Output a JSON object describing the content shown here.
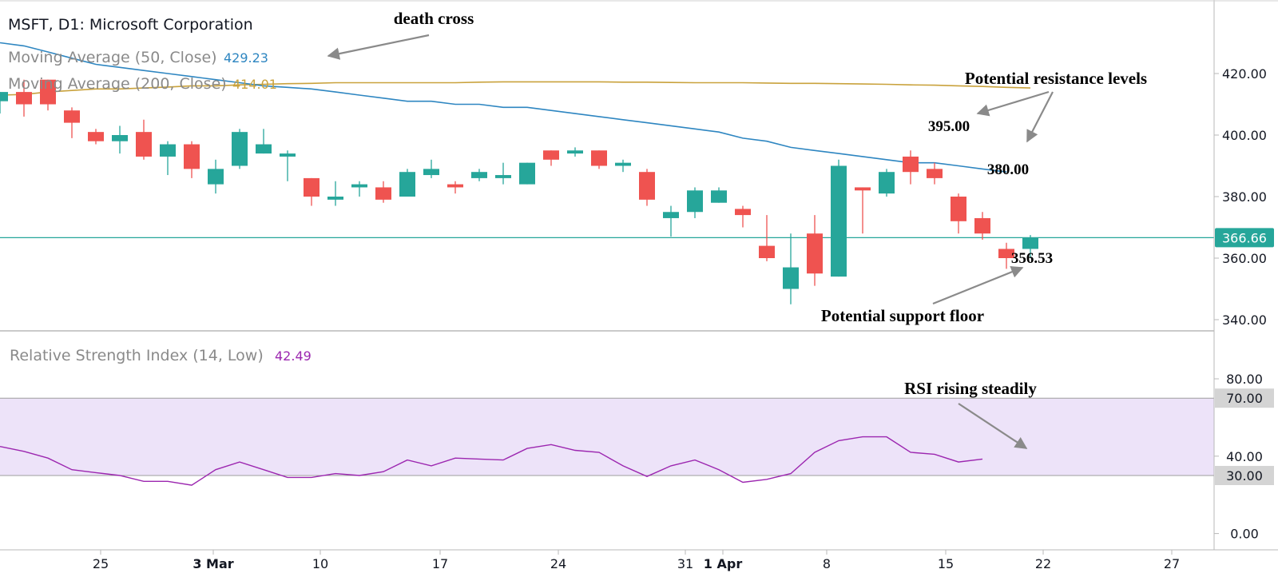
{
  "header": {
    "symbol_title": "MSFT, D1: Microsoft Corporation",
    "ma50_label": "Moving Average (50, Close)",
    "ma50_value": "429.23",
    "ma200_label": "Moving Average (200, Close)",
    "ma200_value": "414.01",
    "rsi_label": "Relative Strength Index (14, Low)",
    "rsi_value": "42.49"
  },
  "colors": {
    "up": "#26a69a",
    "down": "#ef5350",
    "ma50": "#2e86c1",
    "ma200": "#c9a23c",
    "rsi": "#9c27b0",
    "rsi_band": "#ede3f9",
    "price_line": "#26a69a",
    "arrow": "#8a8a8a"
  },
  "annotations": {
    "death_cross": "death cross",
    "resistance": "Potential resistance levels",
    "support": "Potential support floor",
    "rsi_rising": "RSI rising steadily",
    "level_395": "395.00",
    "level_380": "380.00",
    "level_356": "356.53"
  },
  "chart_data": [
    {
      "type": "candlestick",
      "title": "MSFT, D1: Microsoft Corporation",
      "y_ticks": [
        "420.00",
        "400.00",
        "380.00",
        "360.00",
        "340.00"
      ],
      "y_tick_values": [
        420,
        400,
        380,
        360,
        340
      ],
      "last_price_label": "366.66",
      "last_price": 366.66,
      "x_tick_labels": [
        "25",
        "3 Mar",
        "10",
        "17",
        "24",
        "31",
        "1 Apr",
        "8",
        "15",
        "22",
        "27"
      ],
      "candles": [
        {
          "o": 411,
          "h": 414,
          "l": 407,
          "c": 414
        },
        {
          "o": 414,
          "h": 418,
          "l": 406,
          "c": 410
        },
        {
          "o": 418,
          "h": 418,
          "l": 408,
          "c": 410
        },
        {
          "o": 408,
          "h": 409,
          "l": 399,
          "c": 404
        },
        {
          "o": 401,
          "h": 402,
          "l": 397,
          "c": 398
        },
        {
          "o": 398,
          "h": 403,
          "l": 394,
          "c": 400
        },
        {
          "o": 401,
          "h": 405,
          "l": 392,
          "c": 393
        },
        {
          "o": 393,
          "h": 398,
          "l": 387,
          "c": 397
        },
        {
          "o": 397,
          "h": 398,
          "l": 386,
          "c": 389
        },
        {
          "o": 384,
          "h": 392,
          "l": 381,
          "c": 389
        },
        {
          "o": 390,
          "h": 402,
          "l": 389,
          "c": 401
        },
        {
          "o": 394,
          "h": 402,
          "l": 394,
          "c": 397
        },
        {
          "o": 393,
          "h": 395,
          "l": 385,
          "c": 394
        },
        {
          "o": 386,
          "h": 386,
          "l": 377,
          "c": 380
        },
        {
          "o": 379,
          "h": 385,
          "l": 377,
          "c": 380
        },
        {
          "o": 383,
          "h": 385,
          "l": 380,
          "c": 384
        },
        {
          "o": 383,
          "h": 385,
          "l": 378,
          "c": 379
        },
        {
          "o": 380,
          "h": 389,
          "l": 380,
          "c": 388
        },
        {
          "o": 387,
          "h": 392,
          "l": 386,
          "c": 389
        },
        {
          "o": 384,
          "h": 385,
          "l": 381,
          "c": 383
        },
        {
          "o": 386,
          "h": 389,
          "l": 385,
          "c": 388
        },
        {
          "o": 386,
          "h": 391,
          "l": 384,
          "c": 387
        },
        {
          "o": 384,
          "h": 391,
          "l": 384,
          "c": 391
        },
        {
          "o": 395,
          "h": 395,
          "l": 390,
          "c": 392
        },
        {
          "o": 394,
          "h": 396,
          "l": 393,
          "c": 395
        },
        {
          "o": 395,
          "h": 395,
          "l": 389,
          "c": 390
        },
        {
          "o": 390,
          "h": 392,
          "l": 388,
          "c": 391
        },
        {
          "o": 388,
          "h": 389,
          "l": 377,
          "c": 379
        },
        {
          "o": 373,
          "h": 377,
          "l": 367,
          "c": 375
        },
        {
          "o": 375,
          "h": 383,
          "l": 373,
          "c": 382
        },
        {
          "o": 378,
          "h": 383,
          "l": 378,
          "c": 382
        },
        {
          "o": 376,
          "h": 377,
          "l": 370,
          "c": 374
        },
        {
          "o": 364,
          "h": 374,
          "l": 359,
          "c": 360
        },
        {
          "o": 350,
          "h": 368,
          "l": 345,
          "c": 357
        },
        {
          "o": 368,
          "h": 374,
          "l": 351,
          "c": 355
        },
        {
          "o": 354,
          "h": 392,
          "l": 354,
          "c": 390
        },
        {
          "o": 383,
          "h": 383,
          "l": 368,
          "c": 382
        },
        {
          "o": 381,
          "h": 389,
          "l": 380,
          "c": 388
        },
        {
          "o": 393,
          "h": 395,
          "l": 384,
          "c": 388
        },
        {
          "o": 389,
          "h": 391,
          "l": 384,
          "c": 386
        },
        {
          "o": 380,
          "h": 381,
          "l": 368,
          "c": 372
        },
        {
          "o": 373,
          "h": 375,
          "l": 366,
          "c": 368
        },
        {
          "o": 363,
          "h": 365,
          "l": 356.53,
          "c": 360
        },
        {
          "o": 363,
          "h": 367.5,
          "l": 360,
          "c": 366.66
        }
      ],
      "ma50": [
        430,
        429,
        427,
        425,
        423,
        422,
        421,
        420,
        419,
        418,
        417,
        416,
        415.5,
        415,
        414,
        413,
        412,
        411,
        411,
        410,
        410,
        409,
        409,
        408,
        407,
        406,
        405,
        404,
        403,
        402,
        401,
        399,
        398,
        396,
        395,
        394,
        393,
        392,
        391,
        391,
        390,
        389,
        388
      ],
      "ma200": [
        413,
        413.2,
        414,
        414.5,
        415,
        415,
        415.3,
        415.6,
        416,
        416,
        416.3,
        416.5,
        416.7,
        416.8,
        417,
        417,
        417,
        417,
        417,
        417,
        417.2,
        417.3,
        417.3,
        417.3,
        417.3,
        417.3,
        417.2,
        417.2,
        417.1,
        417,
        417,
        417,
        416.9,
        416.8,
        416.8,
        416.7,
        416.6,
        416.5,
        416.3,
        416.2,
        416,
        415.8,
        415.5,
        415.3
      ]
    },
    {
      "type": "line",
      "title": "Relative Strength Index (14, Low)",
      "y_ticks": [
        "80.00",
        "70.00",
        "40.00",
        "30.00",
        "0.00"
      ],
      "y_tick_values": [
        80,
        70,
        40,
        30,
        0
      ],
      "band": [
        30,
        70
      ],
      "values": [
        45,
        42.5,
        39,
        33,
        31.5,
        30,
        27,
        27,
        25,
        33,
        37,
        33,
        29,
        29,
        31,
        30,
        32,
        38,
        35,
        39,
        38.5,
        38,
        44,
        46,
        43,
        42,
        35,
        29.5,
        35,
        38,
        33,
        26.5,
        28,
        31,
        42,
        48,
        50,
        50,
        42,
        41,
        37,
        38.5
      ]
    }
  ]
}
